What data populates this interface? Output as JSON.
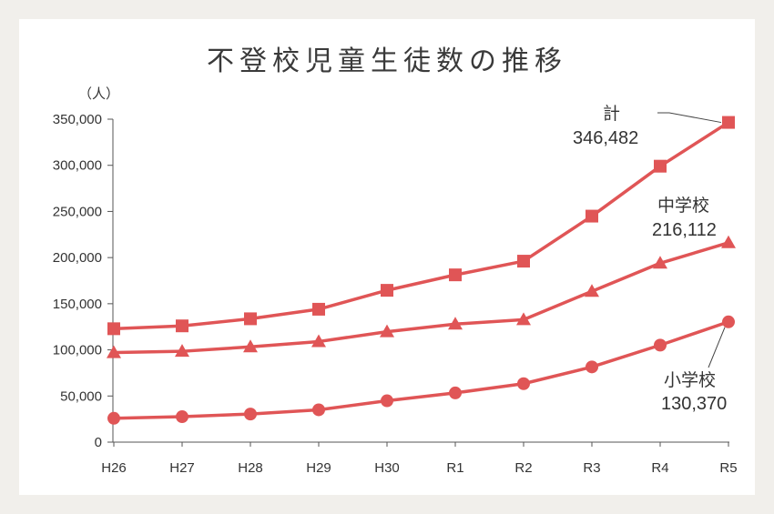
{
  "chart_data": {
    "type": "line",
    "title": "不登校児童生徒数の推移",
    "unit_label": "（人）",
    "categories": [
      "H26",
      "H27",
      "H28",
      "H29",
      "H30",
      "R1",
      "R2",
      "R3",
      "R4",
      "R5"
    ],
    "y_ticks": [
      "0",
      "50,000",
      "100,000",
      "150,000",
      "200,000",
      "250,000",
      "300,000",
      "350,000"
    ],
    "ylim": [
      0,
      350000
    ],
    "grid": false,
    "line_color": "#e05556",
    "series": [
      {
        "name": "計",
        "marker": "square",
        "values": [
          122897,
          125991,
          133683,
          144031,
          164528,
          181272,
          196127,
          244940,
          299048,
          346482
        ],
        "label_name": "計",
        "label_value": "346,482"
      },
      {
        "name": "中学校",
        "marker": "triangle",
        "values": [
          97033,
          98408,
          103235,
          108999,
          119687,
          127922,
          132777,
          163442,
          193936,
          216112
        ],
        "label_name": "中学校",
        "label_value": "216,112"
      },
      {
        "name": "小学校",
        "marker": "circle",
        "values": [
          25864,
          27583,
          30448,
          35032,
          44841,
          53350,
          63350,
          81498,
          105112,
          130370
        ],
        "label_name": "小学校",
        "label_value": "130,370"
      }
    ]
  }
}
